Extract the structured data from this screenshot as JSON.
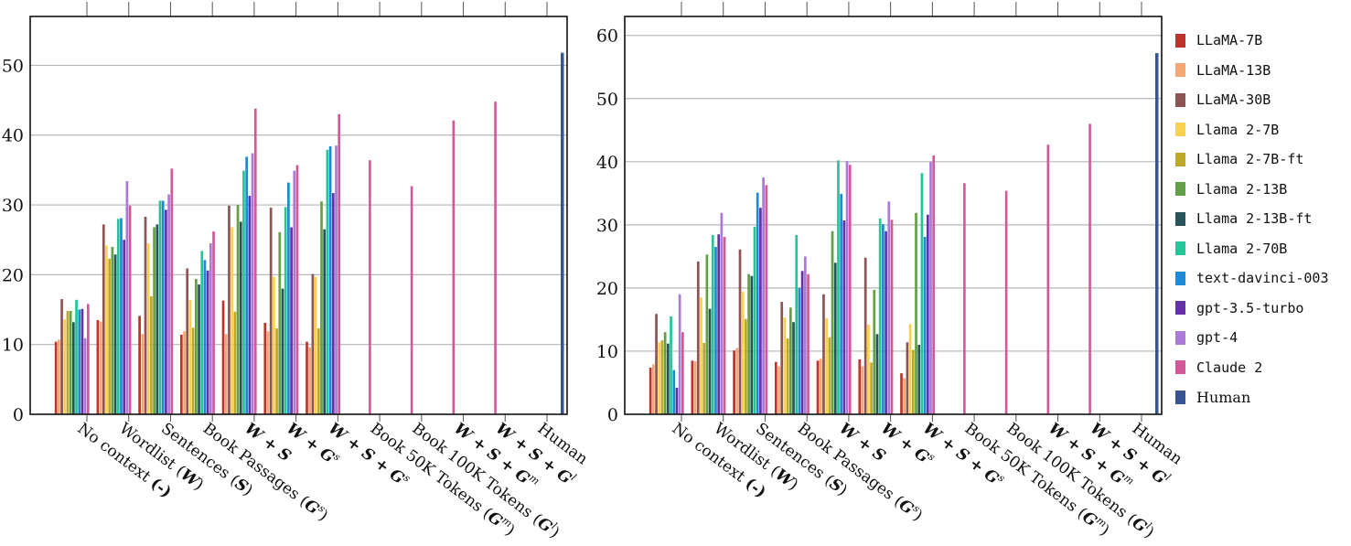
{
  "chart_data": [
    {
      "type": "bar",
      "title": "",
      "xlabel": "",
      "ylabel": "",
      "ylim": [
        0,
        57
      ],
      "yticks": [
        0,
        10,
        20,
        30,
        40,
        50
      ],
      "grid": "horizontal",
      "categories": [
        "No context (-)",
        "Wordlist (W)",
        "Sentences (S)",
        "Book Passages (G^s)",
        "W + S",
        "W + G^s",
        "W + S + G^s",
        "Book 50K Tokens (G^m)",
        "Book 100K Tokens (G^l)",
        "W + S + G^m",
        "W + S + G^l",
        "Human"
      ],
      "series": [
        {
          "name": "LLaMA-7B",
          "values": [
            10.4,
            13.5,
            14.1,
            11.4,
            16.3,
            13.1,
            10.4,
            null,
            null,
            null,
            null,
            null
          ]
        },
        {
          "name": "LLaMA-13B",
          "values": [
            10.7,
            13.3,
            11.5,
            11.9,
            11.5,
            11.9,
            9.6,
            null,
            null,
            null,
            null,
            null
          ]
        },
        {
          "name": "LLaMA-30B",
          "values": [
            16.5,
            27.2,
            28.3,
            20.9,
            29.9,
            29.6,
            20.1,
            null,
            null,
            null,
            null,
            null
          ]
        },
        {
          "name": "Llama 2-7B",
          "values": [
            13.6,
            24.2,
            24.5,
            16.4,
            26.8,
            19.7,
            19.7,
            null,
            null,
            null,
            null,
            null
          ]
        },
        {
          "name": "Llama 2-7B-ft",
          "values": [
            14.8,
            22.3,
            16.9,
            12.4,
            14.7,
            12.3,
            12.3,
            null,
            null,
            null,
            null,
            null
          ]
        },
        {
          "name": "Llama 2-13B",
          "values": [
            14.8,
            24.0,
            26.8,
            19.4,
            30.0,
            26.1,
            30.5,
            null,
            null,
            null,
            null,
            null
          ]
        },
        {
          "name": "Llama 2-13B-ft",
          "values": [
            13.2,
            22.9,
            27.2,
            18.6,
            27.6,
            18.0,
            26.5,
            null,
            null,
            null,
            null,
            null
          ]
        },
        {
          "name": "Llama 2-70B",
          "values": [
            16.4,
            28.0,
            30.6,
            23.4,
            34.9,
            29.7,
            37.9,
            null,
            null,
            null,
            null,
            null
          ]
        },
        {
          "name": "text-davinci-003",
          "values": [
            15.0,
            28.1,
            30.6,
            22.1,
            36.9,
            33.2,
            38.4,
            null,
            null,
            null,
            null,
            null
          ]
        },
        {
          "name": "gpt-3.5-turbo",
          "values": [
            15.1,
            25.0,
            29.3,
            20.6,
            31.3,
            26.8,
            31.7,
            null,
            null,
            null,
            null,
            null
          ]
        },
        {
          "name": "gpt-4",
          "values": [
            10.9,
            33.4,
            31.5,
            24.5,
            37.4,
            34.9,
            38.5,
            null,
            null,
            null,
            null,
            null
          ]
        },
        {
          "name": "Claude 2",
          "values": [
            15.8,
            29.9,
            35.2,
            26.2,
            43.8,
            35.7,
            43.0,
            36.4,
            32.7,
            42.1,
            44.8,
            null
          ]
        },
        {
          "name": "Human",
          "values": [
            null,
            null,
            null,
            null,
            null,
            null,
            null,
            null,
            null,
            null,
            null,
            51.8
          ]
        }
      ]
    },
    {
      "type": "bar",
      "title": "",
      "xlabel": "",
      "ylabel": "",
      "ylim": [
        0,
        63
      ],
      "yticks": [
        0,
        10,
        20,
        30,
        40,
        50,
        60
      ],
      "grid": "horizontal",
      "legend_position": "right",
      "categories": [
        "No context (-)",
        "Wordlist (W)",
        "Sentences (S)",
        "Book Passages (G^s)",
        "W + S",
        "W + G^s",
        "W + S + G^s",
        "Book 50K Tokens (G^m)",
        "Book 100K Tokens (G^l)",
        "W + S + G^m",
        "W + S + G^l",
        "Human"
      ],
      "series": [
        {
          "name": "LLaMA-7B",
          "values": [
            7.4,
            8.5,
            10.1,
            8.3,
            8.5,
            8.7,
            6.5,
            null,
            null,
            null,
            null,
            null
          ]
        },
        {
          "name": "LLaMA-13B",
          "values": [
            7.9,
            8.4,
            10.5,
            7.6,
            8.8,
            7.6,
            5.7,
            null,
            null,
            null,
            null,
            null
          ]
        },
        {
          "name": "LLaMA-30B",
          "values": [
            15.9,
            24.2,
            26.1,
            17.8,
            19.0,
            24.8,
            11.4,
            null,
            null,
            null,
            null,
            null
          ]
        },
        {
          "name": "Llama 2-7B",
          "values": [
            11.4,
            18.5,
            19.4,
            15.3,
            15.2,
            14.2,
            14.3,
            null,
            null,
            null,
            null,
            null
          ]
        },
        {
          "name": "Llama 2-7B-ft",
          "values": [
            11.7,
            11.3,
            15.1,
            12.0,
            12.2,
            8.2,
            10.2,
            null,
            null,
            null,
            null,
            null
          ]
        },
        {
          "name": "Llama 2-13B",
          "values": [
            13.0,
            25.3,
            22.2,
            16.9,
            29.0,
            19.7,
            31.9,
            null,
            null,
            null,
            null,
            null
          ]
        },
        {
          "name": "Llama 2-13B-ft",
          "values": [
            11.2,
            16.7,
            21.9,
            14.6,
            24.0,
            12.7,
            11.0,
            null,
            null,
            null,
            null,
            null
          ]
        },
        {
          "name": "Llama 2-70B",
          "values": [
            15.5,
            28.4,
            29.7,
            28.4,
            40.2,
            31.0,
            38.2,
            null,
            null,
            null,
            null,
            null
          ]
        },
        {
          "name": "text-davinci-003",
          "values": [
            7.0,
            26.5,
            35.1,
            20.0,
            34.9,
            30.1,
            28.1,
            null,
            null,
            null,
            null,
            null
          ]
        },
        {
          "name": "gpt-3.5-turbo",
          "values": [
            4.2,
            28.5,
            32.7,
            22.7,
            30.7,
            29.0,
            31.6,
            null,
            null,
            null,
            null,
            null
          ]
        },
        {
          "name": "gpt-4",
          "values": [
            19.0,
            31.9,
            37.5,
            25.0,
            40.1,
            33.7,
            40.0,
            null,
            null,
            null,
            null,
            null
          ]
        },
        {
          "name": "Claude 2",
          "values": [
            13.0,
            28.1,
            36.3,
            22.2,
            39.5,
            30.8,
            41.0,
            36.6,
            35.4,
            42.7,
            46.0,
            null
          ]
        },
        {
          "name": "Human",
          "values": [
            null,
            null,
            null,
            null,
            null,
            null,
            null,
            null,
            null,
            null,
            null,
            57.2
          ]
        }
      ]
    }
  ],
  "legend": {
    "items": [
      {
        "label": "LLaMA-7B",
        "color": "#c0322c"
      },
      {
        "label": "LLaMA-13B",
        "color": "#f6a673"
      },
      {
        "label": "LLaMA-30B",
        "color": "#8c5454"
      },
      {
        "label": "Llama 2-7B",
        "color": "#fcd04f"
      },
      {
        "label": "Llama 2-7B-ft",
        "color": "#bea82a"
      },
      {
        "label": "Llama 2-13B",
        "color": "#61a046"
      },
      {
        "label": "Llama 2-13B-ft",
        "color": "#27545a"
      },
      {
        "label": "Llama 2-70B",
        "color": "#24c598"
      },
      {
        "label": "text-davinci-003",
        "color": "#1e8ad6"
      },
      {
        "label": "gpt-3.5-turbo",
        "color": "#6630a8"
      },
      {
        "label": "gpt-4",
        "color": "#ab7ad8"
      },
      {
        "label": "Claude 2",
        "color": "#d25898"
      },
      {
        "label": "Human",
        "color": "#365496"
      }
    ]
  },
  "xtick_labels": [
    {
      "plain": "No context ",
      "bold": "(-)",
      "sup": ""
    },
    {
      "plain": "Wordlist (",
      "bold": "W",
      "tail": ")"
    },
    {
      "plain": "Sentences (",
      "bold": "S",
      "tail": ")"
    },
    {
      "plain": "Book Passages (",
      "bold": "G",
      "sup": "s",
      "tail": ")"
    },
    {
      "bold": "W + S"
    },
    {
      "bold": "W + G",
      "sup": "s"
    },
    {
      "bold": "W + S + G",
      "sup": "s"
    },
    {
      "plain": "Book 50K Tokens (",
      "bold": "G",
      "sup": "m",
      "tail": ")"
    },
    {
      "plain": "Book 100K Tokens (",
      "bold": "G",
      "sup": "l",
      "tail": ")"
    },
    {
      "bold": "W + S + G",
      "sup": "m"
    },
    {
      "bold": "W + S + G",
      "sup": "l"
    },
    {
      "plain": "Human"
    }
  ]
}
